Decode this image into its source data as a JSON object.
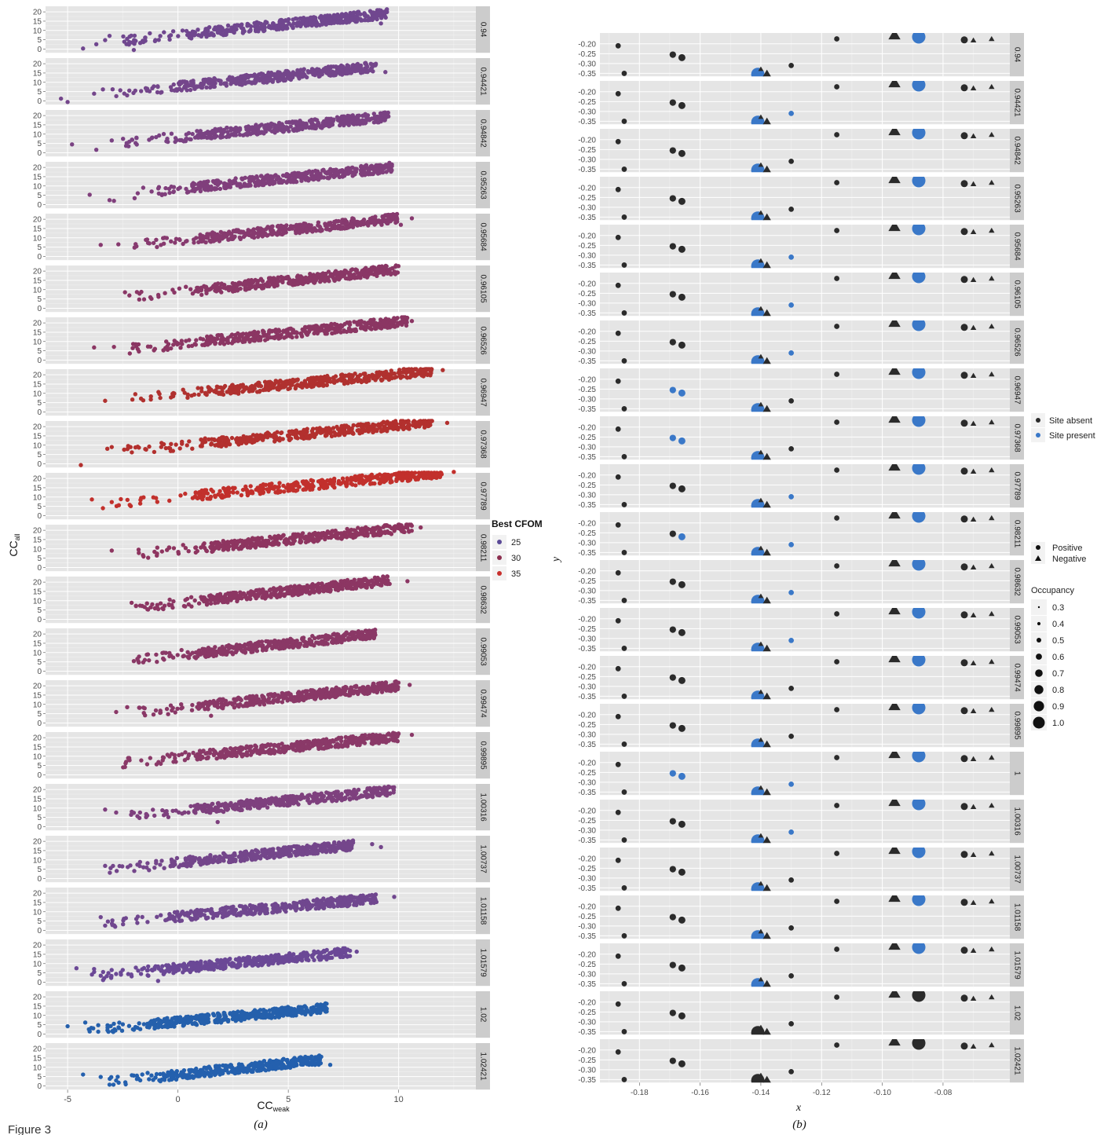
{
  "figure": {
    "label": "Figure 3"
  },
  "chart_data": [
    {
      "type": "scatter",
      "panel_label": "(a)",
      "xlabel": {
        "main": "CC",
        "sub": "weak"
      },
      "ylabel": {
        "main": "CC",
        "sub": "all"
      },
      "xlim": [
        -6,
        13.5
      ],
      "ylim": [
        -2,
        23
      ],
      "xticks": [
        "-5",
        "0",
        "5",
        "10"
      ],
      "xtick_values": [
        -5,
        0,
        5,
        10
      ],
      "yticks": [
        "20",
        "15",
        "10",
        "5",
        "0"
      ],
      "ytick_values": [
        20,
        15,
        10,
        5,
        0
      ],
      "legend": {
        "title": "Best CFOM",
        "entries": [
          "25",
          "30",
          "35"
        ],
        "colors": [
          "#5b4a97",
          "#8c2e4f",
          "#c8302d"
        ]
      },
      "facets": [
        {
          "label": "0.94",
          "x0": -2.5,
          "x1": 9.5,
          "y0": 4.5,
          "y1": 19,
          "color": "#70478f",
          "outliers": [
            [
              -4.3,
              0.3
            ],
            [
              -3.7,
              2.6
            ],
            [
              -3.3,
              4.8
            ],
            [
              -3.1,
              7.1
            ],
            [
              9.2,
              13.8
            ],
            [
              -2.0,
              -0.5
            ]
          ]
        },
        {
          "label": "0.94421",
          "x0": -3.0,
          "x1": 9.0,
          "y0": 4.0,
          "y1": 18.5,
          "color": "#74468b",
          "outliers": [
            [
              -5.3,
              1.2
            ],
            [
              -5.0,
              -0.6
            ],
            [
              -3.8,
              3.9
            ],
            [
              -3.4,
              6.2
            ],
            [
              9.4,
              15.5
            ]
          ]
        },
        {
          "label": "0.94842",
          "x0": -2.8,
          "x1": 9.6,
          "y0": 5.0,
          "y1": 19.5,
          "color": "#7a4283",
          "outliers": [
            [
              -4.8,
              4.5
            ],
            [
              -3.7,
              1.6
            ],
            [
              -3.0,
              6.6
            ]
          ]
        },
        {
          "label": "0.95263",
          "x0": -2.4,
          "x1": 9.7,
          "y0": 5.5,
          "y1": 20,
          "color": "#803f7c",
          "outliers": [
            [
              -4.0,
              5.3
            ],
            [
              -3.1,
              2.4
            ],
            [
              -2.9,
              2.0
            ]
          ]
        },
        {
          "label": "0.95684",
          "x0": -2.1,
          "x1": 10.0,
          "y0": 6.0,
          "y1": 20.5,
          "color": "#873a6f",
          "outliers": [
            [
              -3.5,
              6.2
            ],
            [
              -2.7,
              6.5
            ],
            [
              10.6,
              20.5
            ],
            [
              10.1,
              17.0
            ]
          ]
        },
        {
          "label": "0.96105",
          "x0": -2.0,
          "x1": 10.0,
          "y0": 6.0,
          "y1": 21,
          "color": "#8a3766",
          "outliers": [
            [
              -2.4,
              8.6
            ],
            [
              -2.2,
              6.9
            ]
          ]
        },
        {
          "label": "0.96526",
          "x0": -2.2,
          "x1": 10.4,
          "y0": 6.0,
          "y1": 21,
          "color": "#8b3663",
          "outliers": [
            [
              -3.8,
              6.8
            ],
            [
              -2.9,
              7.1
            ],
            [
              10.6,
              21.0
            ]
          ]
        },
        {
          "label": "0.96947",
          "x0": -2.2,
          "x1": 11.5,
          "y0": 7.0,
          "y1": 22,
          "color": "#b0312f",
          "outliers": [
            [
              -3.3,
              6.0
            ],
            [
              12.0,
              22.5
            ]
          ]
        },
        {
          "label": "0.97368",
          "x0": -2.5,
          "x1": 11.6,
          "y0": 7.0,
          "y1": 22.5,
          "color": "#b3302e",
          "outliers": [
            [
              -4.4,
              -0.7
            ],
            [
              -3.2,
              8.1
            ],
            [
              -3.0,
              9.0
            ],
            [
              12.2,
              22.0
            ]
          ]
        },
        {
          "label": "0.97789",
          "x0": -2.8,
          "x1": 12.0,
          "y0": 7.0,
          "y1": 23,
          "color": "#c2302c",
          "outliers": [
            [
              -3.9,
              8.7
            ],
            [
              -3.4,
              4.0
            ],
            [
              -3.0,
              7.3
            ],
            [
              12.5,
              23.5
            ]
          ]
        },
        {
          "label": "0.98211",
          "x0": -2.0,
          "x1": 10.6,
          "y0": 7.0,
          "y1": 21.5,
          "color": "#8e3560",
          "outliers": [
            [
              -3.0,
              9.1
            ],
            [
              11.0,
              21.5
            ]
          ]
        },
        {
          "label": "0.98632",
          "x0": -2.0,
          "x1": 9.6,
          "y0": 6.0,
          "y1": 21,
          "color": "#8c3663",
          "outliers": [
            [
              -2.1,
              8.9
            ],
            [
              -1.9,
              7.3
            ],
            [
              10.4,
              20.5
            ]
          ]
        },
        {
          "label": "0.99053",
          "x0": -2.0,
          "x1": 9.0,
          "y0": 6.0,
          "y1": 20,
          "color": "#8a3866",
          "outliers": [
            [
              -2.0,
              5.4
            ],
            [
              -1.5,
              6.0
            ]
          ]
        },
        {
          "label": "0.99474",
          "x0": -1.9,
          "x1": 10.0,
          "y0": 5.5,
          "y1": 20,
          "color": "#8a3867",
          "outliers": [
            [
              -2.3,
              8.5
            ],
            [
              -2.8,
              5.9
            ],
            [
              1.5,
              3.9
            ],
            [
              10.5,
              20.5
            ]
          ]
        },
        {
          "label": "0.99895",
          "x0": -2.5,
          "x1": 10.0,
          "y0": 6.5,
          "y1": 20.5,
          "color": "#8a3968",
          "outliers": [
            [
              -2.4,
              4.2
            ],
            [
              10.6,
              21.5
            ]
          ]
        },
        {
          "label": "1.00316",
          "x0": -2.3,
          "x1": 9.8,
          "y0": 5.5,
          "y1": 19.5,
          "color": "#7e407e",
          "outliers": [
            [
              -3.3,
              9.2
            ],
            [
              -2.8,
              7.6
            ],
            [
              1.8,
              2.5
            ]
          ]
        },
        {
          "label": "1.00737",
          "x0": -3.1,
          "x1": 8.0,
          "y0": 5.0,
          "y1": 18,
          "color": "#74468b",
          "outliers": [
            [
              -3.3,
              6.8
            ],
            [
              8.8,
              18.5
            ],
            [
              9.2,
              16.9
            ]
          ]
        },
        {
          "label": "1.01158",
          "x0": -3.4,
          "x1": 9.0,
          "y0": 4.0,
          "y1": 17,
          "color": "#70478f",
          "outliers": [
            [
              -3.5,
              7.1
            ],
            [
              9.8,
              18.0
            ],
            [
              8.7,
              16.5
            ],
            [
              8.0,
              15.5
            ]
          ]
        },
        {
          "label": "1.01579",
          "x0": -4.0,
          "x1": 7.8,
          "y0": 3.0,
          "y1": 16,
          "color": "#6b4896",
          "outliers": [
            [
              -4.6,
              7.5
            ],
            [
              -3.8,
              7.1
            ],
            [
              -0.9,
              0.7
            ],
            [
              8.1,
              16.4
            ]
          ]
        },
        {
          "label": "1.02",
          "x0": -4.2,
          "x1": 6.8,
          "y0": 2.0,
          "y1": 14,
          "color": "#2560ac",
          "outliers": [
            [
              -5.0,
              4.2
            ],
            [
              -4.2,
              6.2
            ]
          ]
        },
        {
          "label": "1.02421",
          "x0": -3.3,
          "x1": 6.5,
          "y0": 2.0,
          "y1": 14,
          "color": "#2460ae",
          "outliers": [
            [
              -4.3,
              6.1
            ],
            [
              -3.5,
              4.8
            ],
            [
              -2.8,
              2.9
            ],
            [
              6.9,
              11.3
            ],
            [
              6.2,
              14.0
            ]
          ]
        }
      ]
    },
    {
      "type": "scatter",
      "panel_label": "(b)",
      "xlabel": "x",
      "ylabel": "y",
      "xlim": [
        -0.193,
        -0.058
      ],
      "ylim": [
        -0.365,
        -0.145
      ],
      "xticks": [
        "-0.18",
        "-0.16",
        "-0.14",
        "-0.12",
        "-0.10",
        "-0.08"
      ],
      "xtick_values": [
        -0.18,
        -0.16,
        -0.14,
        -0.12,
        -0.1,
        -0.08
      ],
      "yticks": [
        "-0.20",
        "-0.25",
        "-0.30",
        "-0.35"
      ],
      "ytick_values": [
        -0.2,
        -0.25,
        -0.3,
        -0.35
      ],
      "legend": {
        "site": {
          "entries": [
            "Site absent",
            "Site present"
          ],
          "colors": [
            "#2b2b2b",
            "#3a78c8"
          ]
        },
        "sign": {
          "entries": [
            "Positive",
            "Negative"
          ]
        },
        "occupancy": {
          "title": "Occupancy",
          "entries": [
            "0.3",
            "0.4",
            "0.5",
            "0.6",
            "0.7",
            "0.8",
            "0.9",
            "1.0"
          ]
        }
      },
      "facet_labels": [
        "0.94",
        "0.94421",
        "0.94842",
        "0.95263",
        "0.95684",
        "0.96105",
        "0.96526",
        "0.96947",
        "0.97368",
        "0.97789",
        "0.98211",
        "0.98632",
        "0.99053",
        "0.99474",
        "0.99895",
        "1",
        "1.00316",
        "1.00737",
        "1.01158",
        "1.01579",
        "1.02",
        "1.02421"
      ],
      "sites": [
        {
          "x": -0.187,
          "y": -0.21,
          "occupancy": 0.3,
          "sign": "positive",
          "present": "none"
        },
        {
          "x": -0.185,
          "y": -0.35,
          "occupancy": 0.3,
          "sign": "positive",
          "present": "none"
        },
        {
          "x": -0.169,
          "y": -0.255,
          "occupancy": 0.4,
          "sign": "positive",
          "present": [
            "0.96947",
            "0.97368",
            "1"
          ]
        },
        {
          "x": -0.166,
          "y": -0.27,
          "occupancy": 0.45,
          "sign": "positive",
          "present": [
            "0.96947",
            "0.97368",
            "0.98211",
            "1"
          ]
        },
        {
          "x": -0.141,
          "y": -0.355,
          "occupancy": 1.0,
          "sign": "positive",
          "present": "except",
          "except": [
            "1.02",
            "1.02421"
          ]
        },
        {
          "x": -0.138,
          "y": -0.352,
          "occupancy": 0.6,
          "sign": "negative",
          "present": "none"
        },
        {
          "x": -0.14,
          "y": -0.328,
          "occupancy": 0.3,
          "sign": "negative",
          "present": "none"
        },
        {
          "x": -0.13,
          "y": -0.31,
          "occupancy": 0.3,
          "sign": "positive",
          "present": [
            "0.94421",
            "0.95684",
            "0.96105",
            "0.96526",
            "0.97789",
            "0.98211",
            "0.98632",
            "0.99053",
            "1",
            "1.00316"
          ]
        },
        {
          "x": -0.115,
          "y": -0.175,
          "occupancy": 0.3,
          "sign": "positive",
          "present": "none"
        },
        {
          "x": -0.096,
          "y": -0.155,
          "occupancy": 0.9,
          "sign": "negative",
          "present": "none"
        },
        {
          "x": -0.088,
          "y": -0.165,
          "occupancy": 1.0,
          "sign": "positive",
          "present": "except",
          "except": [
            "1.02",
            "1.02421"
          ]
        },
        {
          "x": -0.073,
          "y": -0.18,
          "occupancy": 0.45,
          "sign": "positive",
          "present": "none"
        },
        {
          "x": -0.07,
          "y": -0.182,
          "occupancy": 0.35,
          "sign": "negative",
          "present": "none"
        },
        {
          "x": -0.064,
          "y": -0.175,
          "occupancy": 0.35,
          "sign": "negative",
          "present": "none"
        }
      ]
    }
  ]
}
